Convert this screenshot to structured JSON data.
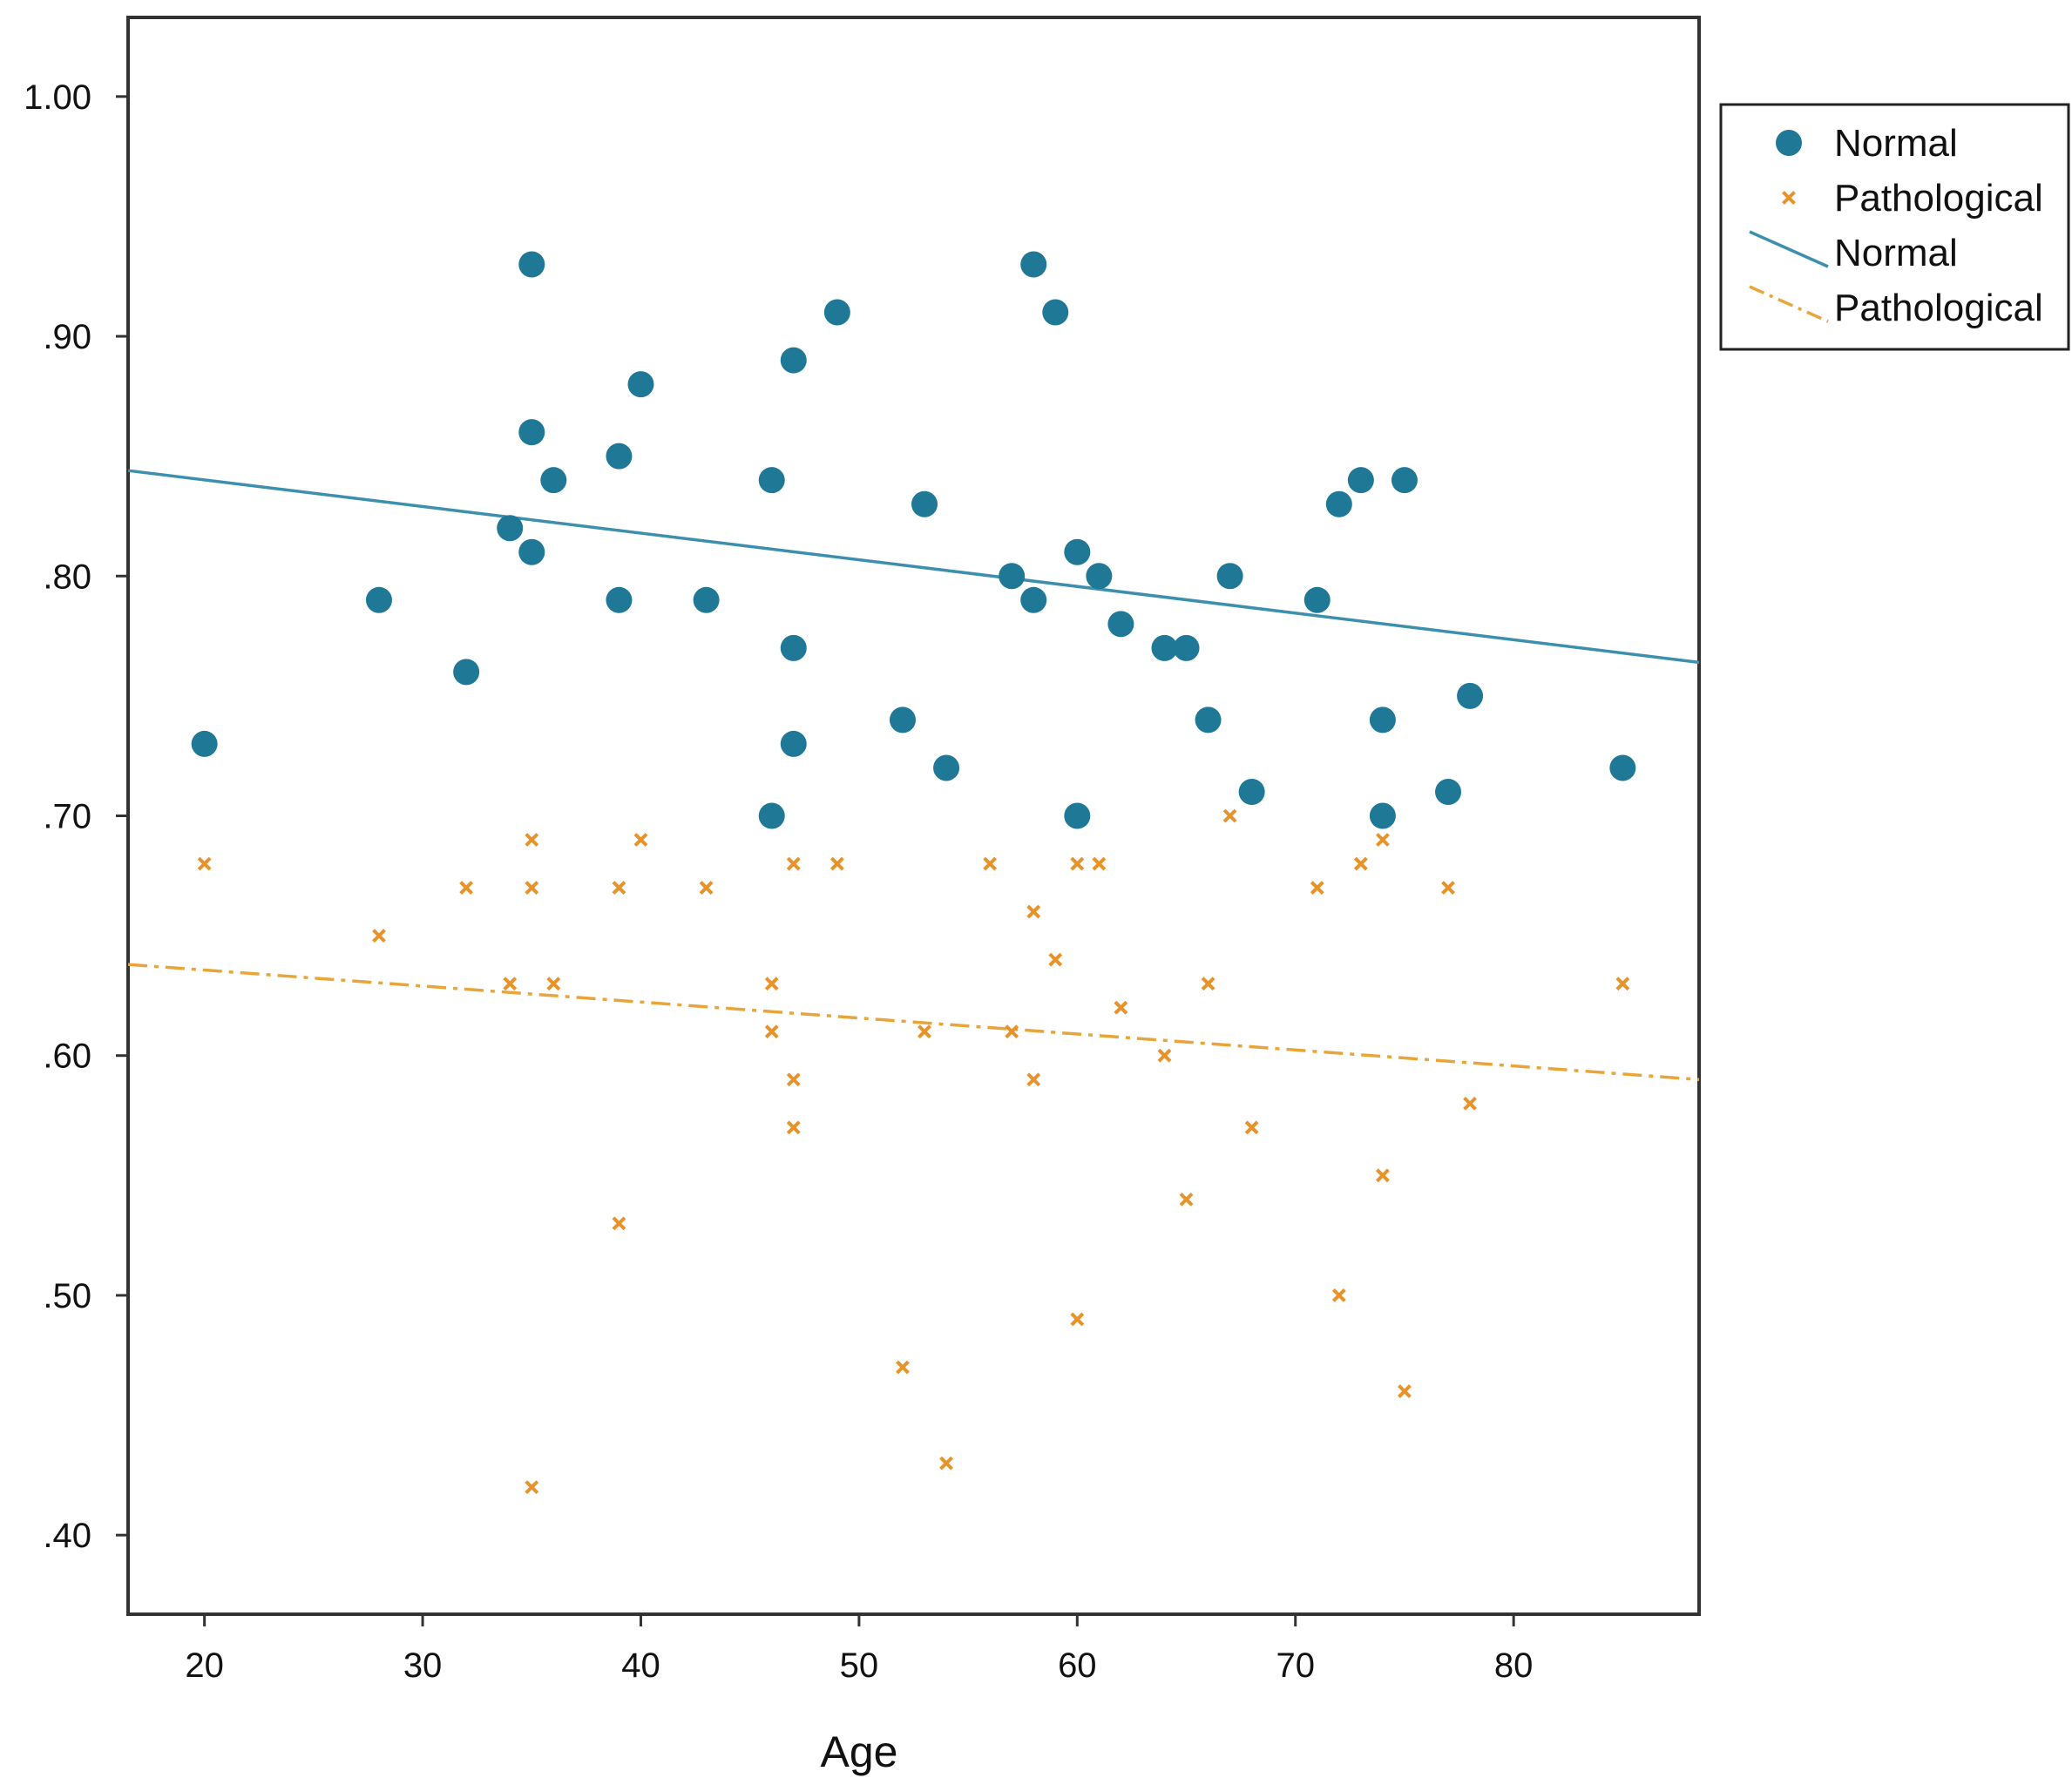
{
  "chart_data": {
    "type": "scatter",
    "xlabel": "Age",
    "ylabel": "",
    "xlim": [
      16.5,
      88.5
    ],
    "ylim": [
      0.367,
      1.033
    ],
    "x_ticks": [
      20,
      30,
      40,
      50,
      60,
      70,
      80
    ],
    "x_tick_labels": [
      "20",
      "30",
      "40",
      "50",
      "60",
      "70",
      "80"
    ],
    "y_ticks": [
      0.4,
      0.5,
      0.6,
      0.7,
      0.8,
      0.9,
      1.0
    ],
    "y_tick_labels": [
      ".40",
      ".50",
      ".60",
      ".70",
      ".80",
      ".90",
      "1.00"
    ],
    "grid": false,
    "legend_position": "top-right",
    "series": [
      {
        "name": "Normal",
        "marker": "circle",
        "color": "#1f7896",
        "points": [
          [
            20,
            0.73
          ],
          [
            28,
            0.79
          ],
          [
            32,
            0.76
          ],
          [
            34,
            0.82
          ],
          [
            35,
            0.93
          ],
          [
            35,
            0.86
          ],
          [
            35,
            0.81
          ],
          [
            36,
            0.84
          ],
          [
            39,
            0.85
          ],
          [
            39,
            0.79
          ],
          [
            40,
            0.88
          ],
          [
            43,
            0.79
          ],
          [
            46,
            0.84
          ],
          [
            46,
            0.7
          ],
          [
            47,
            0.89
          ],
          [
            47,
            0.77
          ],
          [
            47,
            0.73
          ],
          [
            49,
            0.91
          ],
          [
            52,
            0.74
          ],
          [
            53,
            0.83
          ],
          [
            54,
            0.72
          ],
          [
            57,
            0.8
          ],
          [
            58,
            0.93
          ],
          [
            58,
            0.79
          ],
          [
            59,
            0.91
          ],
          [
            60,
            0.81
          ],
          [
            60,
            0.7
          ],
          [
            61,
            0.8
          ],
          [
            62,
            0.78
          ],
          [
            64,
            0.77
          ],
          [
            65,
            0.77
          ],
          [
            66,
            0.74
          ],
          [
            67,
            0.8
          ],
          [
            68,
            0.71
          ],
          [
            71,
            0.79
          ],
          [
            72,
            0.83
          ],
          [
            73,
            0.84
          ],
          [
            74,
            0.74
          ],
          [
            74,
            0.7
          ],
          [
            75,
            0.84
          ],
          [
            77,
            0.71
          ],
          [
            78,
            0.75
          ],
          [
            85,
            0.72
          ]
        ]
      },
      {
        "name": "Pathological",
        "marker": "x",
        "color": "#e8922a",
        "points": [
          [
            20,
            0.68
          ],
          [
            28,
            0.65
          ],
          [
            32,
            0.67
          ],
          [
            34,
            0.63
          ],
          [
            35,
            0.69
          ],
          [
            35,
            0.67
          ],
          [
            35,
            0.42
          ],
          [
            36,
            0.63
          ],
          [
            39,
            0.67
          ],
          [
            39,
            0.53
          ],
          [
            40,
            0.69
          ],
          [
            43,
            0.67
          ],
          [
            46,
            0.63
          ],
          [
            46,
            0.61
          ],
          [
            47,
            0.68
          ],
          [
            47,
            0.59
          ],
          [
            47,
            0.57
          ],
          [
            49,
            0.68
          ],
          [
            52,
            0.47
          ],
          [
            53,
            0.61
          ],
          [
            54,
            0.43
          ],
          [
            56,
            0.68
          ],
          [
            57,
            0.61
          ],
          [
            58,
            0.66
          ],
          [
            58,
            0.59
          ],
          [
            59,
            0.64
          ],
          [
            60,
            0.68
          ],
          [
            60,
            0.49
          ],
          [
            61,
            0.68
          ],
          [
            62,
            0.62
          ],
          [
            64,
            0.6
          ],
          [
            65,
            0.54
          ],
          [
            66,
            0.63
          ],
          [
            67,
            0.7
          ],
          [
            68,
            0.57
          ],
          [
            71,
            0.67
          ],
          [
            72,
            0.5
          ],
          [
            73,
            0.68
          ],
          [
            74,
            0.69
          ],
          [
            74,
            0.55
          ],
          [
            75,
            0.46
          ],
          [
            77,
            0.67
          ],
          [
            78,
            0.58
          ],
          [
            85,
            0.63
          ]
        ]
      }
    ],
    "fit_lines": [
      {
        "name": "Normal",
        "style": "solid",
        "color": "#3d8fae",
        "x": [
          16.5,
          88.5
        ],
        "y": [
          0.844,
          0.764
        ]
      },
      {
        "name": "Pathological",
        "style": "dash-dot",
        "color": "#e8a53a",
        "x": [
          16.5,
          88.5
        ],
        "y": [
          0.638,
          0.59
        ]
      }
    ],
    "legend": [
      {
        "label": "Normal",
        "kind": "marker-circle",
        "color": "#1f7896"
      },
      {
        "label": "Pathological",
        "kind": "marker-x",
        "color": "#e8922a"
      },
      {
        "label": "Normal",
        "kind": "line-solid",
        "color": "#3d8fae"
      },
      {
        "label": "Pathological",
        "kind": "line-dash-dot",
        "color": "#e8a53a"
      }
    ]
  }
}
